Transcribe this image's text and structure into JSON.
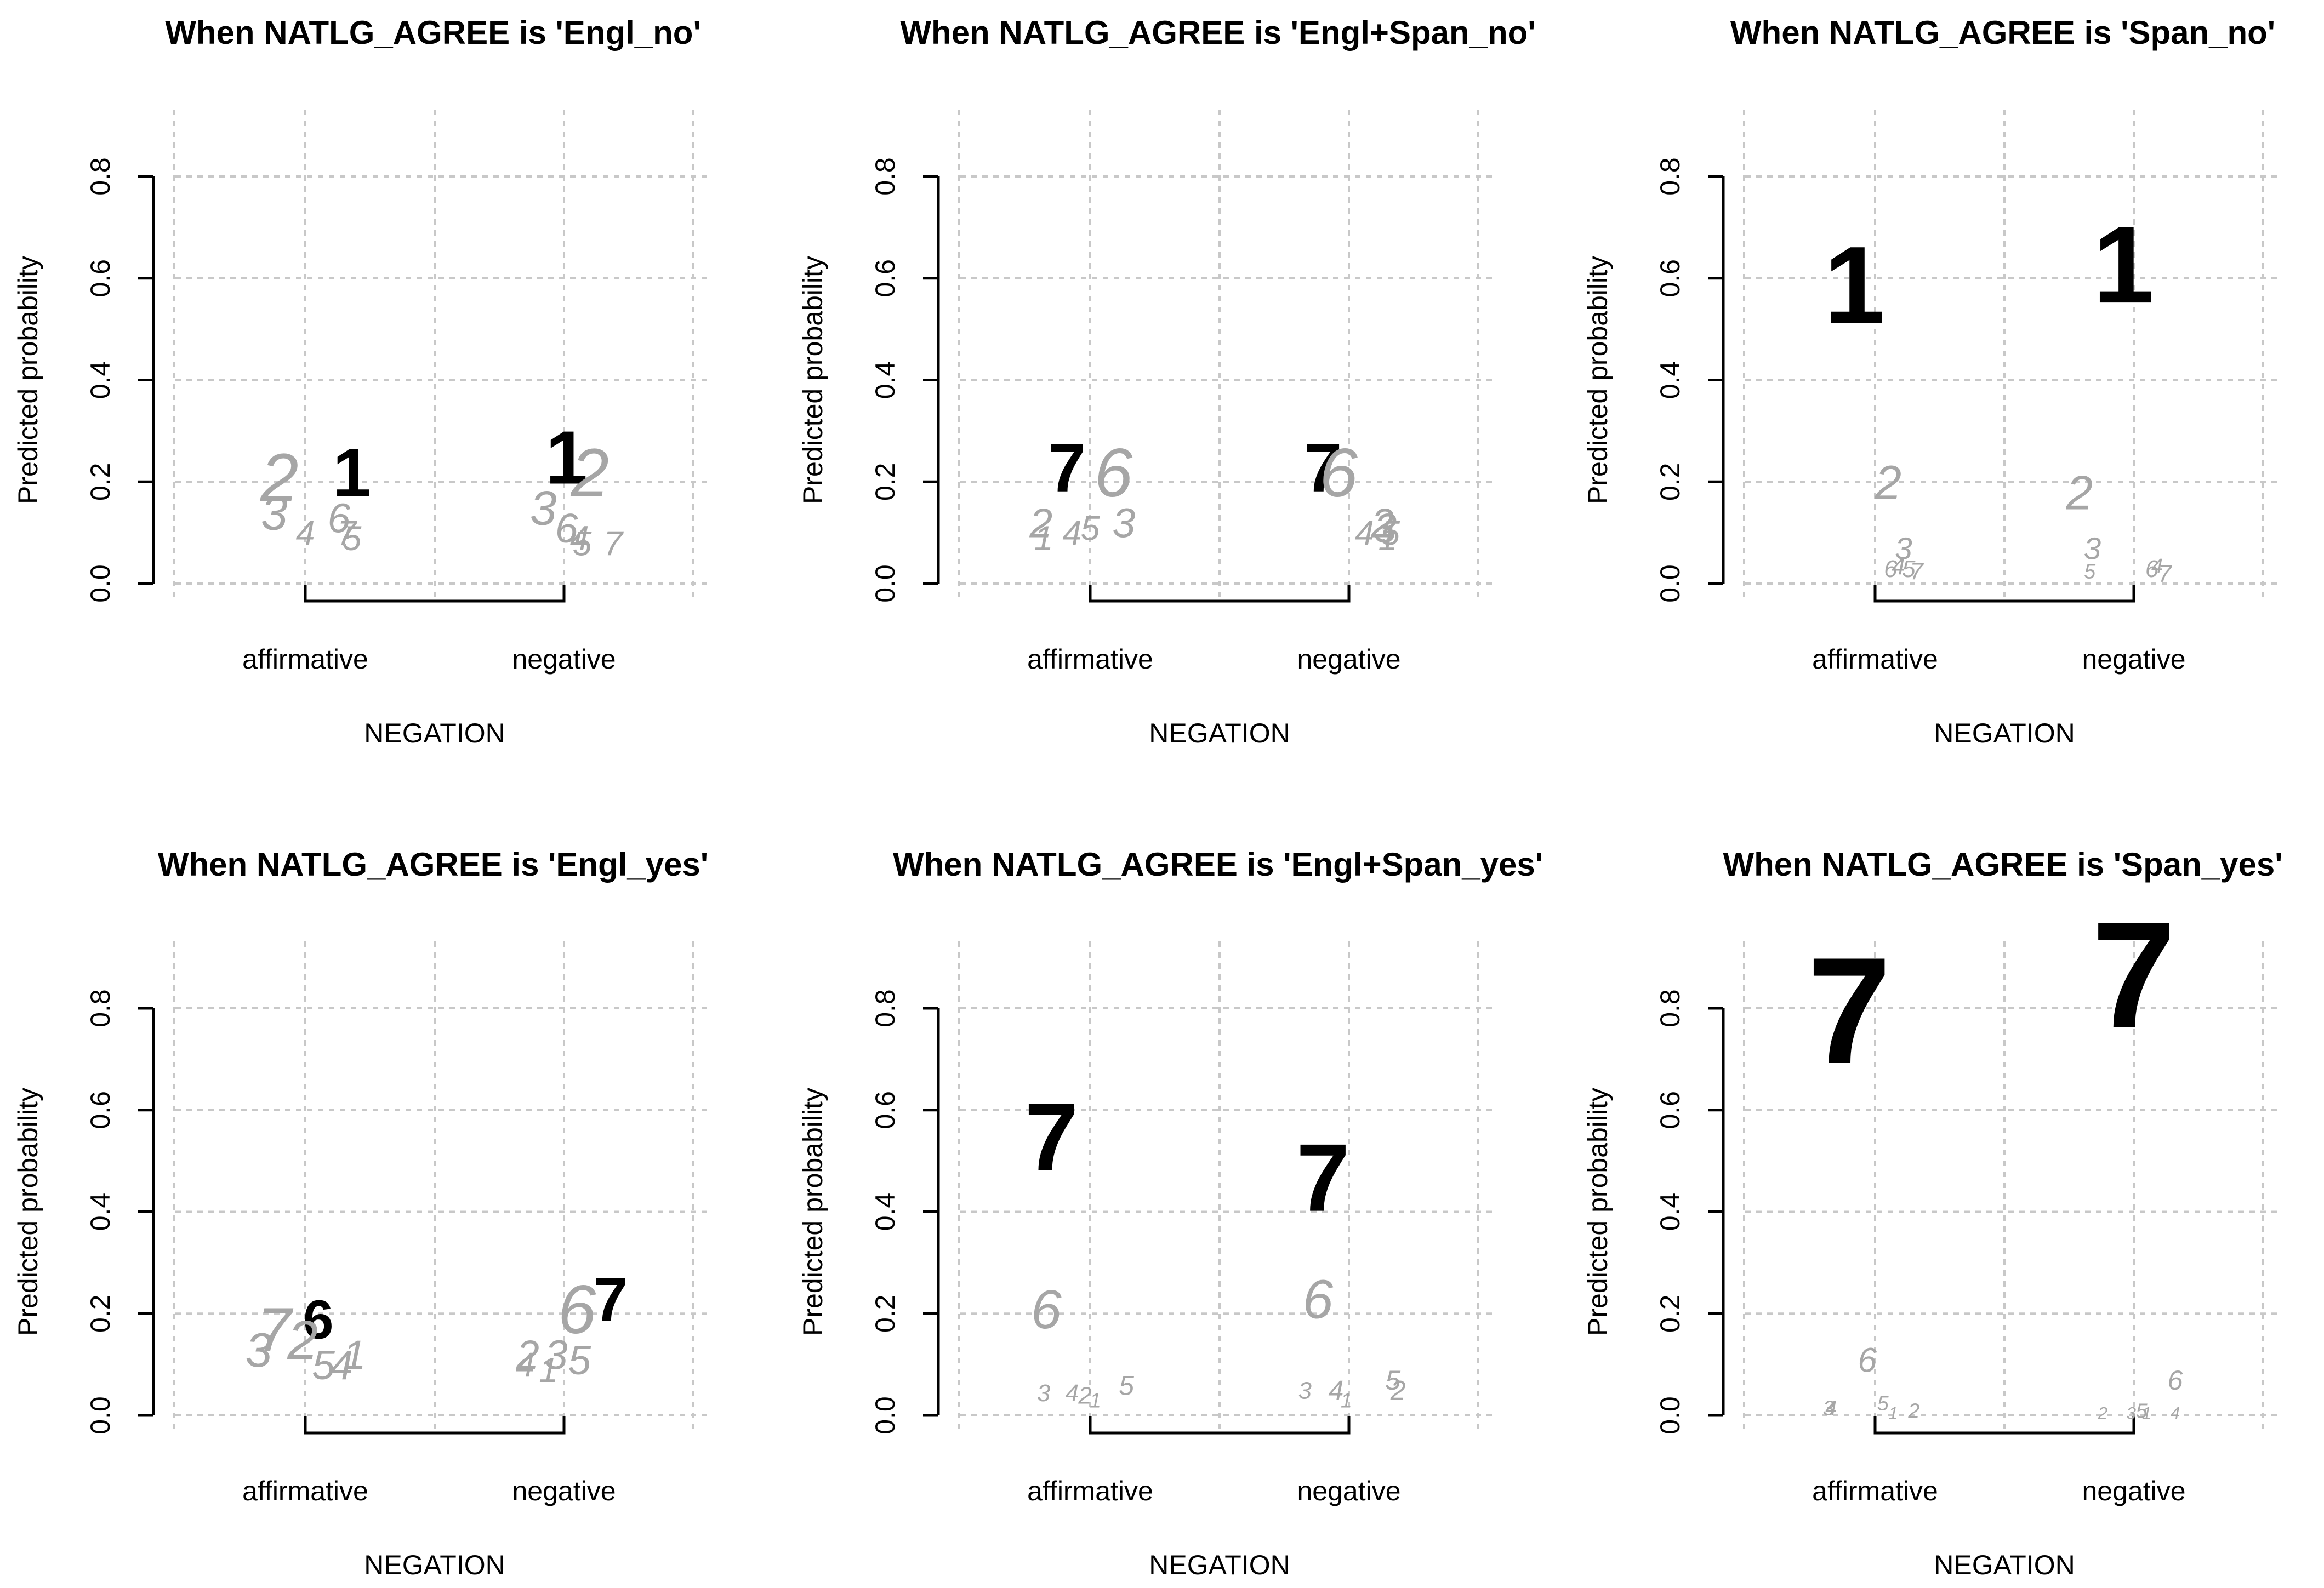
{
  "colors": {
    "background": "#ffffff",
    "axis": "#000000",
    "grid": "#c8c8c8",
    "highlight": "#000000",
    "other": "#a6a6a6"
  },
  "chart_data": [
    {
      "type": "scatter",
      "title": "When NATLG_AGREE is 'Engl_no'",
      "xlabel": "NEGATION",
      "ylabel": "Predicted probability",
      "categories": [
        "affirmative",
        "negative"
      ],
      "yticks": [
        "0.0",
        "0.2",
        "0.4",
        "0.6",
        "0.8"
      ],
      "ylim": [
        0,
        0.8
      ],
      "grid": true,
      "points": [
        {
          "label": "1",
          "x": "affirmative",
          "y": 0.22,
          "offset": 0.18,
          "size": 0.1,
          "highlight": true
        },
        {
          "label": "2",
          "x": "affirmative",
          "y": 0.21,
          "offset": -0.1,
          "size": 0.1,
          "highlight": false
        },
        {
          "label": "3",
          "x": "affirmative",
          "y": 0.14,
          "offset": -0.12,
          "size": 0.07,
          "highlight": false
        },
        {
          "label": "4",
          "x": "affirmative",
          "y": 0.1,
          "offset": 0.0,
          "size": 0.05,
          "highlight": false
        },
        {
          "label": "6",
          "x": "affirmative",
          "y": 0.13,
          "offset": 0.13,
          "size": 0.06,
          "highlight": false
        },
        {
          "label": "7",
          "x": "affirmative",
          "y": 0.1,
          "offset": 0.16,
          "size": 0.05,
          "highlight": false
        },
        {
          "label": "5",
          "x": "affirmative",
          "y": 0.09,
          "offset": 0.18,
          "size": 0.05,
          "highlight": false
        },
        {
          "label": "1",
          "x": "negative",
          "y": 0.25,
          "offset": 0.01,
          "size": 0.11,
          "highlight": true
        },
        {
          "label": "2",
          "x": "negative",
          "y": 0.22,
          "offset": 0.1,
          "size": 0.1,
          "highlight": false
        },
        {
          "label": "3",
          "x": "negative",
          "y": 0.15,
          "offset": -0.08,
          "size": 0.07,
          "highlight": false
        },
        {
          "label": "6",
          "x": "negative",
          "y": 0.11,
          "offset": 0.01,
          "size": 0.06,
          "highlight": false
        },
        {
          "label": "4",
          "x": "negative",
          "y": 0.09,
          "offset": 0.06,
          "size": 0.05,
          "highlight": false
        },
        {
          "label": "5",
          "x": "negative",
          "y": 0.08,
          "offset": 0.07,
          "size": 0.05,
          "highlight": false
        },
        {
          "label": "7",
          "x": "negative",
          "y": 0.08,
          "offset": 0.19,
          "size": 0.05,
          "highlight": false
        }
      ]
    },
    {
      "type": "scatter",
      "title": "When NATLG_AGREE is 'Engl+Span_no'",
      "xlabel": "NEGATION",
      "ylabel": "Predicted probability",
      "categories": [
        "affirmative",
        "negative"
      ],
      "yticks": [
        "0.0",
        "0.2",
        "0.4",
        "0.6",
        "0.8"
      ],
      "ylim": [
        0,
        0.8
      ],
      "grid": true,
      "points": [
        {
          "label": "7",
          "x": "affirmative",
          "y": 0.23,
          "offset": -0.09,
          "size": 0.1,
          "highlight": true
        },
        {
          "label": "6",
          "x": "affirmative",
          "y": 0.22,
          "offset": 0.09,
          "size": 0.1,
          "highlight": false
        },
        {
          "label": "2",
          "x": "affirmative",
          "y": 0.12,
          "offset": -0.19,
          "size": 0.06,
          "highlight": false
        },
        {
          "label": "1",
          "x": "affirmative",
          "y": 0.09,
          "offset": -0.18,
          "size": 0.05,
          "highlight": false
        },
        {
          "label": "4",
          "x": "affirmative",
          "y": 0.1,
          "offset": -0.07,
          "size": 0.05,
          "highlight": false
        },
        {
          "label": "5",
          "x": "affirmative",
          "y": 0.11,
          "offset": 0.0,
          "size": 0.05,
          "highlight": false
        },
        {
          "label": "3",
          "x": "affirmative",
          "y": 0.12,
          "offset": 0.13,
          "size": 0.06,
          "highlight": false
        },
        {
          "label": "7",
          "x": "negative",
          "y": 0.23,
          "offset": -0.1,
          "size": 0.1,
          "highlight": true
        },
        {
          "label": "6",
          "x": "negative",
          "y": 0.22,
          "offset": -0.04,
          "size": 0.1,
          "highlight": false
        },
        {
          "label": "4",
          "x": "negative",
          "y": 0.1,
          "offset": 0.06,
          "size": 0.05,
          "highlight": false
        },
        {
          "label": "2",
          "x": "negative",
          "y": 0.12,
          "offset": 0.13,
          "size": 0.06,
          "highlight": false
        },
        {
          "label": "3",
          "x": "negative",
          "y": 0.11,
          "offset": 0.14,
          "size": 0.06,
          "highlight": false
        },
        {
          "label": "5",
          "x": "negative",
          "y": 0.1,
          "offset": 0.16,
          "size": 0.05,
          "highlight": false
        },
        {
          "label": "1",
          "x": "negative",
          "y": 0.09,
          "offset": 0.15,
          "size": 0.05,
          "highlight": false
        }
      ]
    },
    {
      "type": "scatter",
      "title": "When NATLG_AGREE is 'Span_no'",
      "xlabel": "NEGATION",
      "ylabel": "Predicted probability",
      "categories": [
        "affirmative",
        "negative"
      ],
      "yticks": [
        "0.0",
        "0.2",
        "0.4",
        "0.6",
        "0.8"
      ],
      "ylim": [
        0,
        0.8
      ],
      "grid": true,
      "points": [
        {
          "label": "1",
          "x": "affirmative",
          "y": 0.59,
          "offset": -0.08,
          "size": 0.16,
          "highlight": true
        },
        {
          "label": "1",
          "x": "negative",
          "y": 0.63,
          "offset": -0.04,
          "size": 0.16,
          "highlight": true
        },
        {
          "label": "2",
          "x": "affirmative",
          "y": 0.2,
          "offset": 0.05,
          "size": 0.07,
          "highlight": false
        },
        {
          "label": "3",
          "x": "affirmative",
          "y": 0.07,
          "offset": 0.11,
          "size": 0.045,
          "highlight": false
        },
        {
          "label": "6",
          "x": "affirmative",
          "y": 0.03,
          "offset": 0.06,
          "size": 0.035,
          "highlight": false
        },
        {
          "label": "4",
          "x": "affirmative",
          "y": 0.035,
          "offset": 0.09,
          "size": 0.035,
          "highlight": false
        },
        {
          "label": "5",
          "x": "affirmative",
          "y": 0.03,
          "offset": 0.13,
          "size": 0.035,
          "highlight": false
        },
        {
          "label": "7",
          "x": "affirmative",
          "y": 0.025,
          "offset": 0.16,
          "size": 0.035,
          "highlight": false
        },
        {
          "label": "2",
          "x": "negative",
          "y": 0.18,
          "offset": -0.21,
          "size": 0.07,
          "highlight": false
        },
        {
          "label": "3",
          "x": "negative",
          "y": 0.07,
          "offset": -0.16,
          "size": 0.045,
          "highlight": false
        },
        {
          "label": "5",
          "x": "negative",
          "y": 0.025,
          "offset": -0.17,
          "size": 0.03,
          "highlight": false
        },
        {
          "label": "6",
          "x": "negative",
          "y": 0.03,
          "offset": 0.07,
          "size": 0.035,
          "highlight": false
        },
        {
          "label": "4",
          "x": "negative",
          "y": 0.035,
          "offset": 0.09,
          "size": 0.03,
          "highlight": false
        },
        {
          "label": "7",
          "x": "negative",
          "y": 0.02,
          "offset": 0.12,
          "size": 0.035,
          "highlight": false
        }
      ]
    },
    {
      "type": "scatter",
      "title": "When NATLG_AGREE is 'Engl_yes'",
      "xlabel": "NEGATION",
      "ylabel": "Predicted probability",
      "categories": [
        "affirmative",
        "negative"
      ],
      "yticks": [
        "0.0",
        "0.2",
        "0.4",
        "0.6",
        "0.8"
      ],
      "ylim": [
        0,
        0.8
      ],
      "grid": true,
      "points": [
        {
          "label": "6",
          "x": "affirmative",
          "y": 0.19,
          "offset": 0.05,
          "size": 0.08,
          "highlight": true
        },
        {
          "label": "7",
          "x": "affirmative",
          "y": 0.17,
          "offset": -0.12,
          "size": 0.09,
          "highlight": false
        },
        {
          "label": "3",
          "x": "affirmative",
          "y": 0.13,
          "offset": -0.18,
          "size": 0.07,
          "highlight": false
        },
        {
          "label": "2",
          "x": "affirmative",
          "y": 0.15,
          "offset": -0.01,
          "size": 0.08,
          "highlight": false
        },
        {
          "label": "5",
          "x": "affirmative",
          "y": 0.1,
          "offset": 0.07,
          "size": 0.06,
          "highlight": false
        },
        {
          "label": "4",
          "x": "affirmative",
          "y": 0.1,
          "offset": 0.14,
          "size": 0.06,
          "highlight": false
        },
        {
          "label": "1",
          "x": "affirmative",
          "y": 0.12,
          "offset": 0.19,
          "size": 0.06,
          "highlight": false
        },
        {
          "label": "7",
          "x": "negative",
          "y": 0.23,
          "offset": 0.18,
          "size": 0.09,
          "highlight": true
        },
        {
          "label": "6",
          "x": "negative",
          "y": 0.21,
          "offset": 0.05,
          "size": 0.1,
          "highlight": false
        },
        {
          "label": "2",
          "x": "negative",
          "y": 0.12,
          "offset": -0.14,
          "size": 0.06,
          "highlight": false
        },
        {
          "label": "4",
          "x": "negative",
          "y": 0.1,
          "offset": -0.15,
          "size": 0.05,
          "highlight": false
        },
        {
          "label": "1",
          "x": "negative",
          "y": 0.09,
          "offset": -0.06,
          "size": 0.05,
          "highlight": false
        },
        {
          "label": "3",
          "x": "negative",
          "y": 0.12,
          "offset": -0.03,
          "size": 0.06,
          "highlight": false
        },
        {
          "label": "5",
          "x": "negative",
          "y": 0.11,
          "offset": 0.06,
          "size": 0.06,
          "highlight": false
        }
      ]
    },
    {
      "type": "scatter",
      "title": "When NATLG_AGREE is 'Engl+Span_yes'",
      "xlabel": "NEGATION",
      "ylabel": "Predicted probability",
      "categories": [
        "affirmative",
        "negative"
      ],
      "yticks": [
        "0.0",
        "0.2",
        "0.4",
        "0.6",
        "0.8"
      ],
      "ylim": [
        0,
        0.8
      ],
      "grid": true,
      "points": [
        {
          "label": "7",
          "x": "affirmative",
          "y": 0.55,
          "offset": -0.15,
          "size": 0.14,
          "highlight": true
        },
        {
          "label": "6",
          "x": "affirmative",
          "y": 0.21,
          "offset": -0.17,
          "size": 0.08,
          "highlight": false
        },
        {
          "label": "3",
          "x": "affirmative",
          "y": 0.045,
          "offset": -0.18,
          "size": 0.035,
          "highlight": false
        },
        {
          "label": "4",
          "x": "affirmative",
          "y": 0.045,
          "offset": -0.07,
          "size": 0.035,
          "highlight": false
        },
        {
          "label": "2",
          "x": "affirmative",
          "y": 0.04,
          "offset": -0.02,
          "size": 0.035,
          "highlight": false
        },
        {
          "label": "1",
          "x": "affirmative",
          "y": 0.03,
          "offset": 0.02,
          "size": 0.03,
          "highlight": false
        },
        {
          "label": "5",
          "x": "affirmative",
          "y": 0.06,
          "offset": 0.14,
          "size": 0.04,
          "highlight": false
        },
        {
          "label": "7",
          "x": "negative",
          "y": 0.47,
          "offset": -0.1,
          "size": 0.14,
          "highlight": true
        },
        {
          "label": "6",
          "x": "negative",
          "y": 0.23,
          "offset": -0.12,
          "size": 0.08,
          "highlight": false
        },
        {
          "label": "3",
          "x": "negative",
          "y": 0.05,
          "offset": -0.17,
          "size": 0.035,
          "highlight": false
        },
        {
          "label": "4",
          "x": "negative",
          "y": 0.05,
          "offset": -0.05,
          "size": 0.04,
          "highlight": false
        },
        {
          "label": "1",
          "x": "negative",
          "y": 0.03,
          "offset": -0.01,
          "size": 0.03,
          "highlight": false
        },
        {
          "label": "5",
          "x": "negative",
          "y": 0.07,
          "offset": 0.17,
          "size": 0.04,
          "highlight": false
        },
        {
          "label": "2",
          "x": "negative",
          "y": 0.05,
          "offset": 0.19,
          "size": 0.04,
          "highlight": false
        }
      ]
    },
    {
      "type": "scatter",
      "title": "When NATLG_AGREE is 'Span_yes'",
      "xlabel": "NEGATION",
      "ylabel": "Predicted probability",
      "categories": [
        "affirmative",
        "negative"
      ],
      "yticks": [
        "0.0",
        "0.2",
        "0.4",
        "0.6",
        "0.8"
      ],
      "ylim": [
        0,
        0.8
      ],
      "grid": true,
      "points": [
        {
          "label": "7",
          "x": "affirmative",
          "y": 0.8,
          "offset": -0.1,
          "size": 0.22,
          "highlight": true
        },
        {
          "label": "7",
          "x": "negative",
          "y": 0.87,
          "offset": 0.0,
          "size": 0.22,
          "highlight": true
        },
        {
          "label": "6",
          "x": "affirmative",
          "y": 0.11,
          "offset": -0.03,
          "size": 0.05,
          "highlight": false
        },
        {
          "label": "3",
          "x": "affirmative",
          "y": 0.015,
          "offset": -0.18,
          "size": 0.03,
          "highlight": false
        },
        {
          "label": "4",
          "x": "affirmative",
          "y": 0.015,
          "offset": -0.17,
          "size": 0.03,
          "highlight": false
        },
        {
          "label": "5",
          "x": "affirmative",
          "y": 0.025,
          "offset": 0.03,
          "size": 0.03,
          "highlight": false
        },
        {
          "label": "1",
          "x": "affirmative",
          "y": 0.005,
          "offset": 0.07,
          "size": 0.025,
          "highlight": false
        },
        {
          "label": "2",
          "x": "affirmative",
          "y": 0.01,
          "offset": 0.15,
          "size": 0.03,
          "highlight": false
        },
        {
          "label": "2",
          "x": "negative",
          "y": 0.005,
          "offset": -0.12,
          "size": 0.025,
          "highlight": false
        },
        {
          "label": "3",
          "x": "negative",
          "y": 0.005,
          "offset": -0.01,
          "size": 0.025,
          "highlight": false
        },
        {
          "label": "5",
          "x": "negative",
          "y": 0.01,
          "offset": 0.03,
          "size": 0.03,
          "highlight": false
        },
        {
          "label": "1",
          "x": "negative",
          "y": 0.005,
          "offset": 0.05,
          "size": 0.025,
          "highlight": false
        },
        {
          "label": "4",
          "x": "negative",
          "y": 0.005,
          "offset": 0.16,
          "size": 0.025,
          "highlight": false
        },
        {
          "label": "6",
          "x": "negative",
          "y": 0.07,
          "offset": 0.16,
          "size": 0.04,
          "highlight": false
        }
      ]
    }
  ]
}
